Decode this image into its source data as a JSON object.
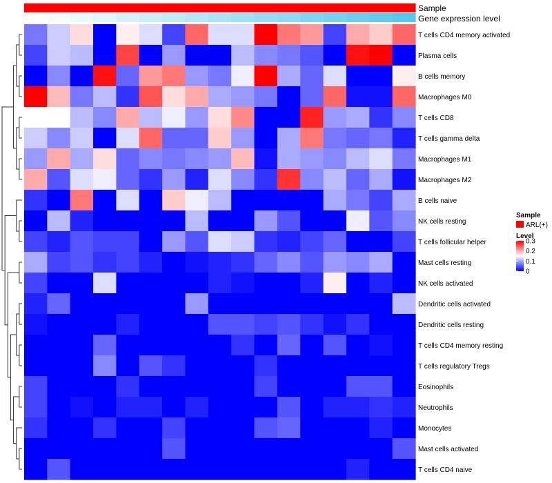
{
  "chart_data": {
    "type": "heatmap",
    "title": "",
    "annotations": [
      {
        "name": "Sample",
        "label": "Sample",
        "color": "#ff0000"
      },
      {
        "name": "Gene expression level",
        "label": "Gene expression level",
        "gradient": [
          "#ffffff",
          "#56c8ee"
        ]
      }
    ],
    "rows": [
      "T cells CD4 memory activated",
      "Plasma cells",
      "B cells memory",
      "Macrophages M0",
      "T cells CD8",
      "T cells gamma delta",
      "Macrophages M1",
      "Macrophages M2",
      "B cells naive",
      "NK cells resting",
      "T cells follicular helper",
      "Mast cells resting",
      "NK cells activated",
      "Dendritic cells activated",
      "Dendritic cells resting",
      "T cells CD4 memory resting",
      "T cells regulatory  Tregs",
      "Eosinophils",
      "Neutrophils",
      "Monocytes",
      "Mast cells activated",
      "T cells CD4 naive"
    ],
    "columns": 17,
    "values": [
      [
        0.07,
        0.12,
        0.17,
        0.0,
        0.16,
        0.13,
        0.04,
        0.24,
        0.13,
        0.13,
        0.3,
        0.23,
        0.21,
        0.04,
        0.2,
        0.18,
        0.24
      ],
      [
        0.04,
        0.12,
        0.11,
        0.0,
        0.26,
        0.0,
        0.09,
        0.0,
        0.0,
        0.11,
        0.08,
        0.07,
        0.05,
        0.0,
        0.29,
        0.3,
        0.0
      ],
      [
        0.0,
        0.08,
        0.0,
        0.29,
        0.06,
        0.21,
        0.23,
        0.09,
        0.07,
        0.14,
        0.3,
        0.1,
        0.06,
        0.13,
        0.0,
        0.0,
        0.16
      ],
      [
        0.3,
        0.19,
        0.07,
        0.11,
        0.03,
        0.25,
        0.17,
        0.2,
        0.1,
        0.09,
        0.07,
        0.0,
        0.06,
        0.24,
        0.01,
        0.01,
        0.24
      ],
      [
        0.15,
        0.15,
        0.11,
        0.08,
        0.2,
        0.11,
        0.14,
        0.09,
        0.17,
        0.22,
        0.0,
        0.0,
        0.28,
        0.09,
        0.1,
        0.03,
        0.08
      ],
      [
        0.12,
        0.08,
        0.12,
        0.0,
        0.13,
        0.24,
        0.06,
        0.06,
        0.18,
        0.09,
        0.0,
        0.1,
        0.23,
        0.07,
        0.06,
        0.07,
        0.02
      ],
      [
        0.09,
        0.2,
        0.1,
        0.17,
        0.06,
        0.08,
        0.07,
        0.08,
        0.09,
        0.19,
        0.01,
        0.1,
        0.09,
        0.08,
        0.11,
        0.13,
        0.07
      ],
      [
        0.2,
        0.05,
        0.13,
        0.14,
        0.06,
        0.03,
        0.09,
        0.02,
        0.13,
        0.08,
        0.03,
        0.27,
        0.08,
        0.11,
        0.06,
        0.1,
        0.01
      ],
      [
        0.03,
        0.0,
        0.23,
        0.0,
        0.13,
        0.0,
        0.18,
        0.14,
        0.11,
        0.0,
        0.0,
        0.0,
        0.0,
        0.1,
        0.07,
        0.04,
        0.1
      ],
      [
        0.0,
        0.11,
        0.02,
        0.0,
        0.0,
        0.0,
        0.0,
        0.11,
        0.0,
        0.0,
        0.09,
        0.05,
        0.0,
        0.0,
        0.14,
        0.05,
        0.08
      ],
      [
        0.04,
        0.02,
        0.05,
        0.04,
        0.04,
        0.0,
        0.09,
        0.05,
        0.13,
        0.12,
        0.03,
        0.02,
        0.04,
        0.06,
        0.0,
        0.0,
        0.04
      ],
      [
        0.1,
        0.04,
        0.05,
        0.03,
        0.04,
        0.02,
        0.0,
        0.01,
        0.02,
        0.03,
        0.06,
        0.08,
        0.05,
        0.09,
        0.08,
        0.1,
        0.0
      ],
      [
        0.04,
        0.0,
        0.0,
        0.13,
        0.0,
        0.0,
        0.0,
        0.0,
        0.02,
        0.01,
        0.0,
        0.0,
        0.02,
        0.16,
        0.0,
        0.02,
        0.0
      ],
      [
        0.02,
        0.06,
        0.0,
        0.0,
        0.0,
        0.0,
        0.0,
        0.09,
        0.0,
        0.0,
        0.0,
        0.0,
        0.0,
        0.0,
        0.0,
        0.0,
        0.11
      ],
      [
        0.01,
        0.0,
        0.0,
        0.0,
        0.02,
        0.0,
        0.0,
        0.0,
        0.05,
        0.05,
        0.04,
        0.05,
        0.03,
        0.01,
        0.03,
        0.0,
        0.0
      ],
      [
        0.0,
        0.0,
        0.0,
        0.06,
        0.0,
        0.0,
        0.0,
        0.0,
        0.0,
        0.03,
        0.0,
        0.06,
        0.0,
        0.05,
        0.0,
        0.01,
        0.0
      ],
      [
        0.0,
        0.0,
        0.0,
        0.08,
        0.0,
        0.05,
        0.03,
        0.0,
        0.0,
        0.0,
        0.03,
        0.0,
        0.0,
        0.0,
        0.0,
        0.0,
        0.0
      ],
      [
        0.04,
        0.0,
        0.0,
        0.0,
        0.03,
        0.0,
        0.0,
        0.0,
        0.0,
        0.0,
        0.04,
        0.0,
        0.0,
        0.0,
        0.05,
        0.05,
        0.0
      ],
      [
        0.04,
        0.0,
        0.01,
        0.0,
        0.02,
        0.02,
        0.0,
        0.02,
        0.0,
        0.0,
        0.0,
        0.05,
        0.0,
        0.02,
        0.02,
        0.03,
        0.02
      ],
      [
        0.03,
        0.0,
        0.0,
        0.03,
        0.0,
        0.0,
        0.04,
        0.0,
        0.0,
        0.0,
        0.05,
        0.06,
        0.0,
        0.0,
        0.0,
        0.02,
        0.0
      ],
      [
        0.0,
        0.0,
        0.0,
        0.0,
        0.0,
        0.0,
        0.05,
        0.0,
        0.0,
        0.0,
        0.0,
        0.0,
        0.0,
        0.0,
        0.0,
        0.0,
        0.05
      ],
      [
        0.0,
        0.05,
        0.0,
        0.0,
        0.0,
        0.0,
        0.0,
        0.0,
        0.0,
        0.0,
        0.0,
        0.0,
        0.0,
        0.0,
        0.02,
        0.0,
        0.0
      ]
    ],
    "gene_expression_level": [
      0.0,
      0.06,
      0.12,
      0.18,
      0.25,
      0.31,
      0.37,
      0.43,
      0.5,
      0.56,
      0.62,
      0.68,
      0.75,
      0.81,
      0.87,
      0.93,
      1.0
    ],
    "color_scale": {
      "min": 0,
      "max": 0.3,
      "low": "#0000ff",
      "mid": "#ffffff",
      "high": "#ff0000",
      "mid_value": 0.15
    },
    "legend": {
      "sample_title": "Sample",
      "sample_entry": "ARL(+)",
      "level_title": "Level",
      "ticks": [
        "0.3",
        "0.2",
        "0.1",
        "0"
      ],
      "tick_values": [
        0.3,
        0.2,
        0.1,
        0
      ],
      "placement": "right"
    },
    "row_dendrogram": true,
    "column_dendrogram": false
  }
}
